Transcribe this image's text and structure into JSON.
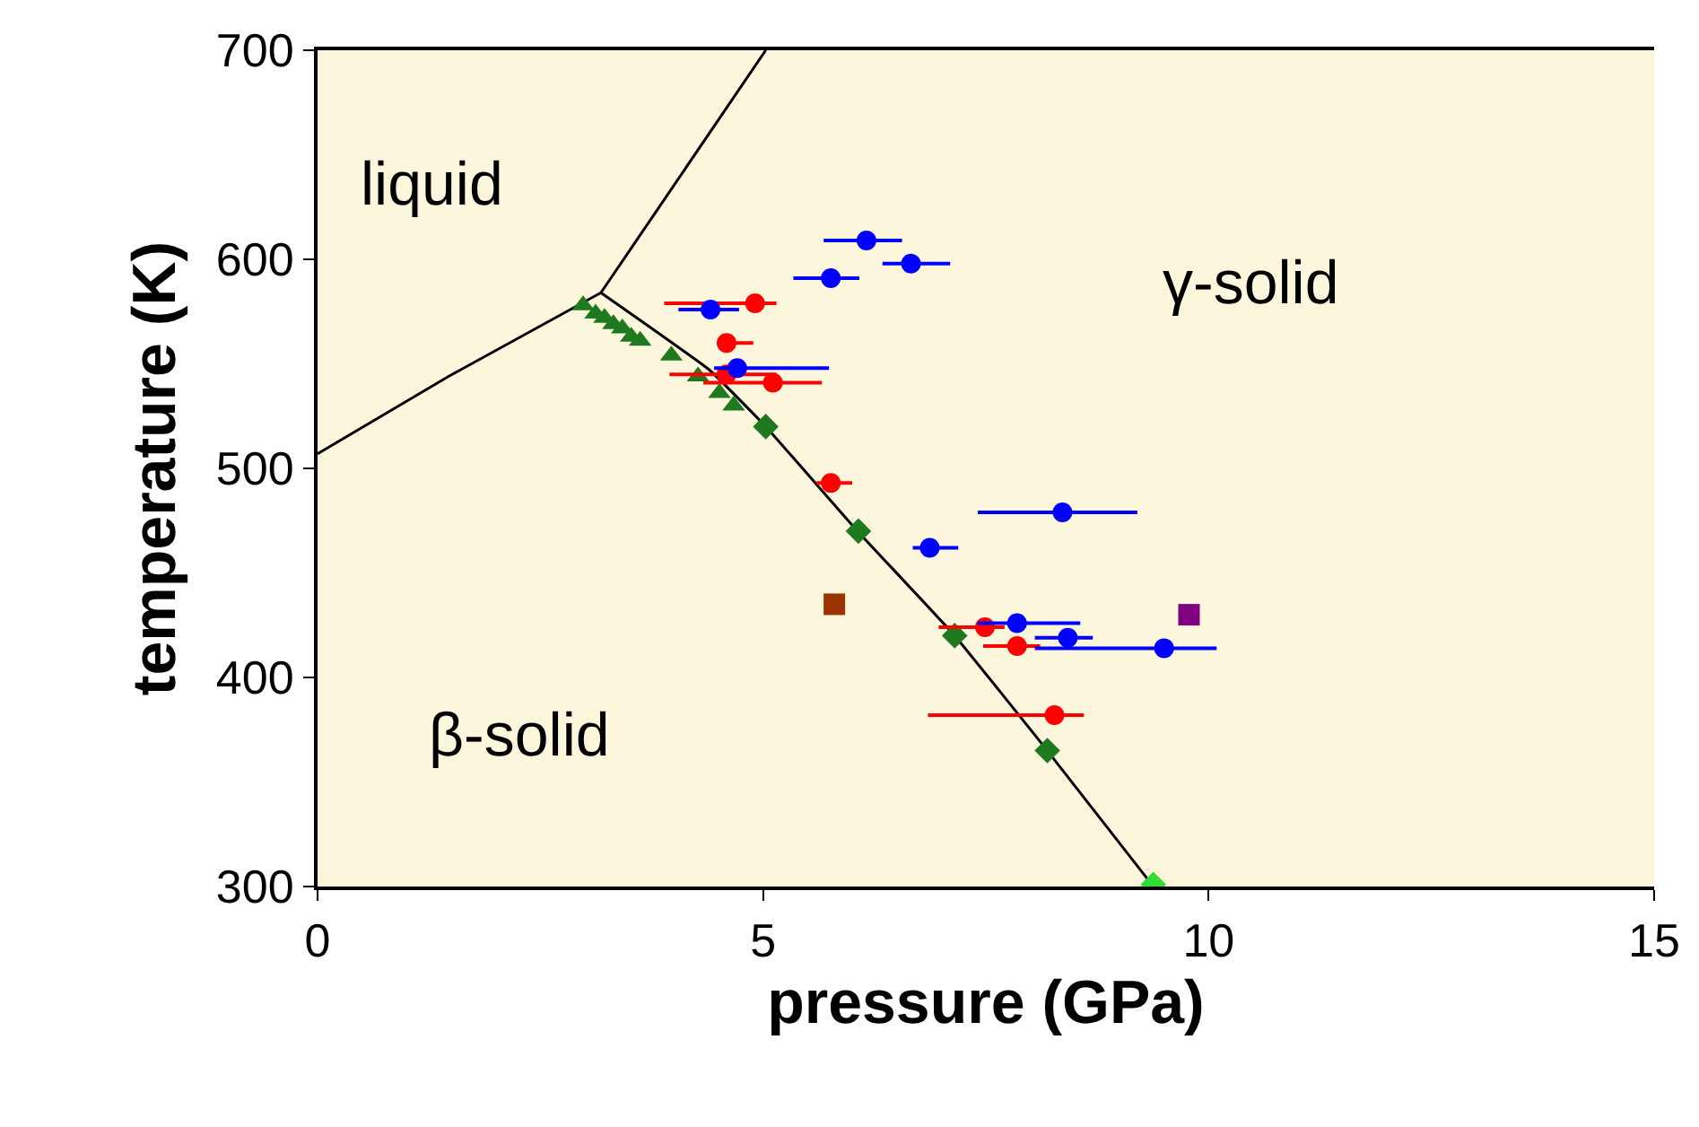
{
  "chart_data": {
    "type": "scatter",
    "xlabel": "pressure (GPa)",
    "ylabel": "temperature (K)",
    "xlim": [
      0,
      15
    ],
    "ylim": [
      300,
      700
    ],
    "xticks": [
      0,
      5,
      10,
      15
    ],
    "yticks": [
      300,
      400,
      500,
      600,
      700
    ],
    "grid": false,
    "annotations": [
      "liquid",
      "γ-solid",
      "β-solid"
    ],
    "series": [
      {
        "type": "line",
        "color": "#000000",
        "marker": "none",
        "x": [
          0,
          1.47,
          3.18
        ],
        "values": [
          507,
          544,
          584
        ]
      },
      {
        "type": "line",
        "color": "#000000",
        "marker": "none",
        "x": [
          3.18,
          5.03
        ],
        "values": [
          584,
          700
        ]
      },
      {
        "type": "line",
        "color": "#000000",
        "marker": "none",
        "x": [
          3.18,
          4.4,
          5.03,
          6.06,
          7.15,
          8.19,
          9.38
        ],
        "values": [
          584,
          547,
          520,
          470,
          420,
          365,
          300
        ]
      },
      {
        "color": "#1f7a1f",
        "marker": "triangle",
        "x": [
          2.98,
          3.12,
          3.22,
          3.32,
          3.42,
          3.52,
          3.62,
          3.97,
          4.27,
          4.51,
          4.67
        ],
        "values": [
          578,
          574,
          572,
          569,
          567,
          563,
          561,
          554,
          544,
          536,
          530
        ]
      },
      {
        "color": "#1f7a1f",
        "marker": "diamond",
        "x": [
          5.03,
          6.07,
          7.15,
          8.19
        ],
        "values": [
          520,
          470,
          420,
          365
        ]
      },
      {
        "color": "#33dd33",
        "marker": "diamond",
        "x": [
          9.38
        ],
        "values": [
          301
        ]
      },
      {
        "color": "#ff0000",
        "marker": "circle",
        "x": [
          4.91,
          4.59,
          4.59,
          5.11,
          5.76,
          7.49,
          7.85,
          8.27
        ],
        "values": [
          579,
          560,
          545,
          541,
          493,
          424,
          415,
          382
        ],
        "xerrors": [
          [
            3.89,
            5.15
          ],
          [
            4.49,
            4.89
          ],
          [
            3.95,
            5.15
          ],
          [
            4.33,
            5.66
          ],
          [
            5.6,
            6.0
          ],
          [
            6.97,
            7.71
          ],
          [
            7.47,
            8.11
          ],
          [
            6.85,
            8.6
          ]
        ]
      },
      {
        "color": "#0000ff",
        "marker": "circle",
        "x": [
          4.41,
          4.71,
          6.16,
          5.76,
          6.66,
          8.36,
          6.87,
          7.85,
          8.42,
          9.5
        ],
        "values": [
          576,
          548,
          609,
          591,
          598,
          479,
          462,
          426,
          419,
          414
        ],
        "xerrors": [
          [
            4.05,
            4.73
          ],
          [
            4.45,
            5.74
          ],
          [
            5.68,
            6.56
          ],
          [
            5.34,
            6.08
          ],
          [
            6.34,
            7.1
          ],
          [
            7.41,
            9.2
          ],
          [
            6.68,
            7.19
          ],
          [
            7.41,
            8.56
          ],
          [
            8.05,
            8.7
          ],
          [
            8.05,
            10.09
          ]
        ]
      },
      {
        "color": "#993300",
        "marker": "square",
        "x": [
          5.8
        ],
        "values": [
          435
        ]
      },
      {
        "color": "#800080",
        "marker": "square",
        "x": [
          9.78
        ],
        "values": [
          430
        ]
      }
    ]
  }
}
